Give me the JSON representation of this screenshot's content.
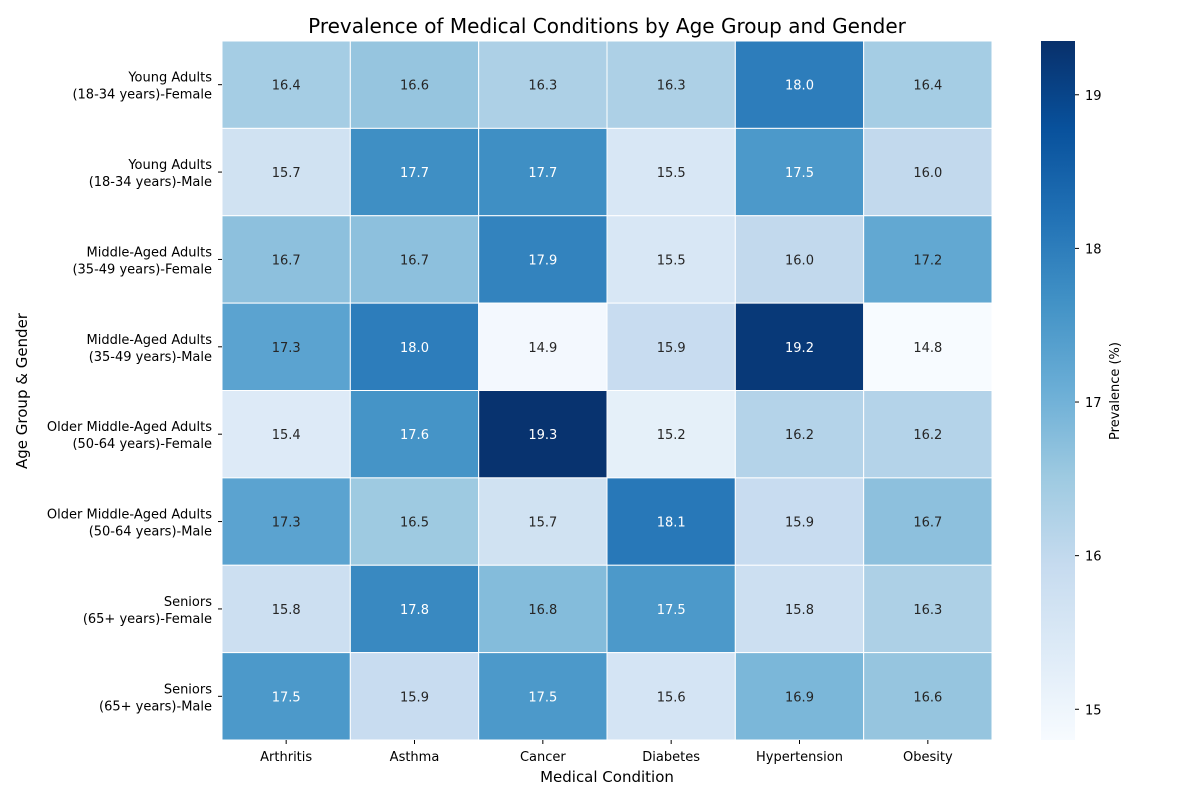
{
  "chart_data": {
    "type": "heatmap",
    "title": "Prevalence of Medical Conditions by Age Group and Gender",
    "xlabel": "Medical Condition",
    "ylabel": "Age Group & Gender",
    "colorbar_label": "Prevalence (%)",
    "colormap": "Blues",
    "color_range": [
      14.8,
      19.35
    ],
    "colorbar_ticks": [
      15,
      16,
      17,
      18,
      19
    ],
    "columns": [
      "Arthritis",
      "Asthma",
      "Cancer",
      "Diabetes",
      "Hypertension",
      "Obesity"
    ],
    "rows": [
      [
        "Young Adults",
        "(18-34 years)-Female"
      ],
      [
        "Young Adults",
        "(18-34 years)-Male"
      ],
      [
        "Middle-Aged Adults",
        "(35-49 years)-Female"
      ],
      [
        "Middle-Aged Adults",
        "(35-49 years)-Male"
      ],
      [
        "Older Middle-Aged Adults",
        "(50-64 years)-Female"
      ],
      [
        "Older Middle-Aged Adults",
        "(50-64 years)-Male"
      ],
      [
        "Seniors",
        "(65+ years)-Female"
      ],
      [
        "Seniors",
        "(65+ years)-Male"
      ]
    ],
    "values": [
      [
        16.4,
        16.6,
        16.3,
        16.3,
        18.0,
        16.4
      ],
      [
        15.7,
        17.7,
        17.7,
        15.5,
        17.5,
        16.0
      ],
      [
        16.7,
        16.7,
        17.9,
        15.5,
        16.0,
        17.2
      ],
      [
        17.3,
        18.0,
        14.9,
        15.9,
        19.2,
        14.8
      ],
      [
        15.4,
        17.6,
        19.3,
        15.2,
        16.2,
        16.2
      ],
      [
        17.3,
        16.5,
        15.7,
        18.1,
        15.9,
        16.7
      ],
      [
        15.8,
        17.8,
        16.8,
        17.5,
        15.8,
        16.3
      ],
      [
        17.5,
        15.9,
        17.5,
        15.6,
        16.9,
        16.6
      ]
    ],
    "annotation_format": "1 decimal"
  }
}
